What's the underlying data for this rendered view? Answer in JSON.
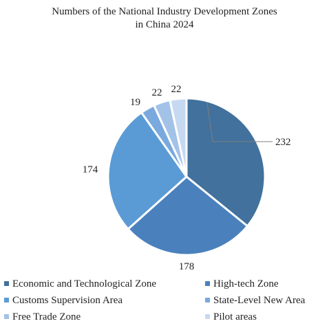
{
  "chart_data": {
    "type": "pie",
    "title_lines": [
      "Numbers of the National Industry Development Zones",
      "in China 2024"
    ],
    "categories": [
      "Economic and Technological Zone",
      "High-tech Zone",
      "Customs Supervision Area",
      "State-Level New Area",
      "Free Trade Zone",
      "Pilot areas"
    ],
    "values": [
      232,
      178,
      174,
      19,
      22,
      22
    ],
    "data_labels": [
      "232",
      "178",
      "174",
      "19",
      "22",
      "22"
    ],
    "colors": [
      "#41719c",
      "#4a81bd",
      "#5b9bd5",
      "#7aa9dd",
      "#a3c2e8",
      "#c6d9f1"
    ],
    "start_angle_deg": 0,
    "direction": "clockwise",
    "legend_position": "bottom",
    "legend_columns": 2
  }
}
